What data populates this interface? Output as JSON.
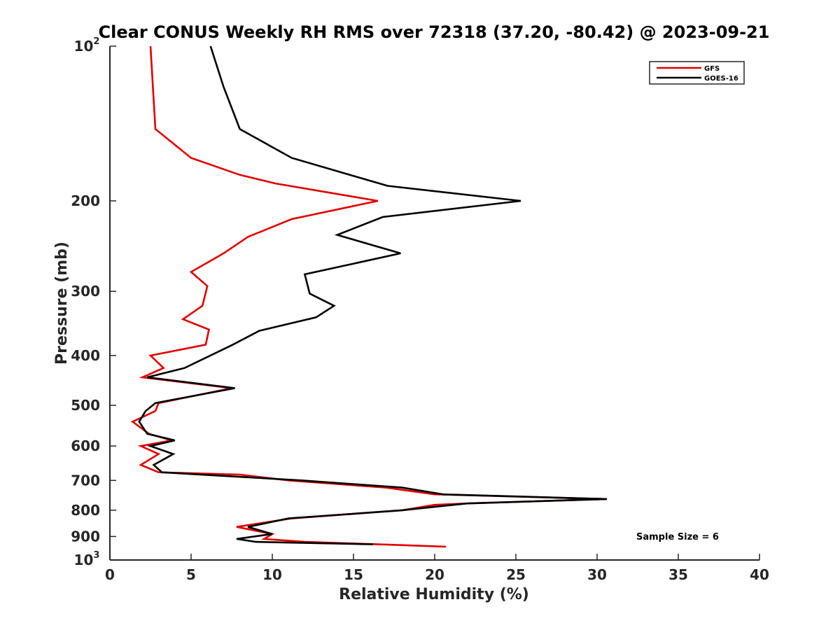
{
  "chart_data": {
    "type": "line",
    "title": "Clear CONUS Weekly RH RMS over 72318 (37.20, -80.42) @ 2023-09-21",
    "xlabel": "Relative Humidity (%)",
    "ylabel": "Pressure (mb)",
    "xlim": [
      0,
      40
    ],
    "ylim": [
      100,
      1000
    ],
    "y_scale": "log",
    "y_reversed": true,
    "grid": false,
    "legend_position": "top-right",
    "x_ticks": [
      0,
      5,
      10,
      15,
      20,
      25,
      30,
      35,
      40
    ],
    "x_tick_labels": [
      "0",
      "5",
      "10",
      "15",
      "20",
      "25",
      "30",
      "35",
      "40"
    ],
    "y_ticks": [
      {
        "value": 100,
        "label": "10",
        "exp": "2"
      },
      {
        "value": 200,
        "label": "200",
        "exp": ""
      },
      {
        "value": 300,
        "label": "300",
        "exp": ""
      },
      {
        "value": 400,
        "label": "400",
        "exp": ""
      },
      {
        "value": 500,
        "label": "500",
        "exp": ""
      },
      {
        "value": 600,
        "label": "600",
        "exp": ""
      },
      {
        "value": 700,
        "label": "700",
        "exp": ""
      },
      {
        "value": 800,
        "label": "800",
        "exp": ""
      },
      {
        "value": 900,
        "label": "900",
        "exp": ""
      },
      {
        "value": 1000,
        "label": "10",
        "exp": "3"
      }
    ],
    "annotation": "Sample Size = 6",
    "series": [
      {
        "name": "GFS",
        "color": "#e00000",
        "points": [
          [
            2.5,
            100
          ],
          [
            2.8,
            145
          ],
          [
            5.0,
            165
          ],
          [
            8.0,
            178
          ],
          [
            10.2,
            185
          ],
          [
            16.5,
            200
          ],
          [
            11.2,
            217
          ],
          [
            8.5,
            235
          ],
          [
            7.0,
            253
          ],
          [
            5.0,
            275
          ],
          [
            6.0,
            293
          ],
          [
            5.7,
            320
          ],
          [
            4.5,
            340
          ],
          [
            6.1,
            356
          ],
          [
            5.9,
            381
          ],
          [
            2.5,
            400
          ],
          [
            3.3,
            423
          ],
          [
            2.0,
            441
          ],
          [
            7.5,
            463
          ],
          [
            3.0,
            495
          ],
          [
            2.8,
            513
          ],
          [
            1.4,
            538
          ],
          [
            2.4,
            568
          ],
          [
            3.8,
            585
          ],
          [
            1.9,
            600
          ],
          [
            3.0,
            622
          ],
          [
            1.9,
            653
          ],
          [
            3.0,
            675
          ],
          [
            8.0,
            682
          ],
          [
            11.0,
            700
          ],
          [
            17.0,
            723
          ],
          [
            20.0,
            745
          ],
          [
            30.6,
            761
          ],
          [
            22.0,
            776
          ],
          [
            20.0,
            781
          ],
          [
            18.0,
            800
          ],
          [
            11.2,
            830
          ],
          [
            7.8,
            862
          ],
          [
            10.0,
            890
          ],
          [
            9.5,
            910
          ],
          [
            12.0,
            922
          ],
          [
            16.5,
            932
          ],
          [
            20.7,
            942
          ]
        ]
      },
      {
        "name": "GOES-16",
        "color": "#000000",
        "points": [
          [
            6.2,
            100
          ],
          [
            7.0,
            120
          ],
          [
            8.0,
            145
          ],
          [
            11.2,
            165
          ],
          [
            17.1,
            187
          ],
          [
            25.3,
            200
          ],
          [
            16.8,
            215
          ],
          [
            14.0,
            233
          ],
          [
            17.9,
            253
          ],
          [
            12.0,
            278
          ],
          [
            12.3,
            303
          ],
          [
            13.8,
            320
          ],
          [
            12.7,
            337
          ],
          [
            9.2,
            358
          ],
          [
            7.5,
            382
          ],
          [
            4.6,
            423
          ],
          [
            2.3,
            441
          ],
          [
            7.7,
            463
          ],
          [
            2.8,
            495
          ],
          [
            2.2,
            513
          ],
          [
            1.8,
            538
          ],
          [
            2.3,
            568
          ],
          [
            4.0,
            585
          ],
          [
            2.5,
            600
          ],
          [
            3.9,
            622
          ],
          [
            2.7,
            653
          ],
          [
            3.2,
            675
          ],
          [
            11.8,
            700
          ],
          [
            18.0,
            723
          ],
          [
            20.5,
            745
          ],
          [
            30.6,
            761
          ],
          [
            22.0,
            776
          ],
          [
            18.0,
            800
          ],
          [
            11.0,
            830
          ],
          [
            8.5,
            862
          ],
          [
            10.0,
            890
          ],
          [
            7.8,
            910
          ],
          [
            9.0,
            922
          ],
          [
            16.2,
            932
          ]
        ]
      }
    ]
  }
}
